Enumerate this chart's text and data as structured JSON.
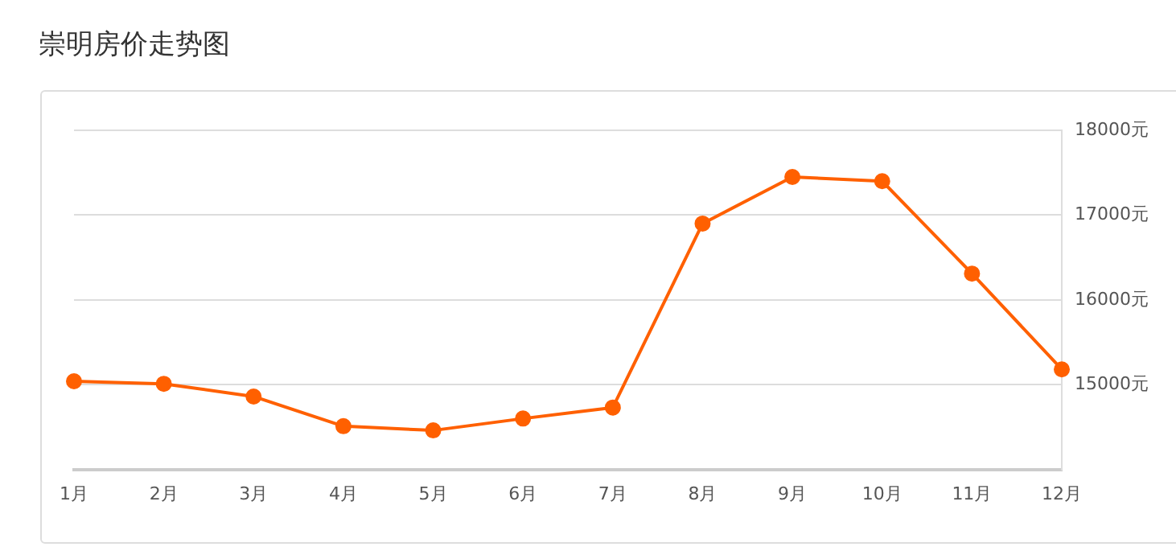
{
  "chart_data": {
    "type": "line",
    "title": "崇明房价走势图",
    "categories": [
      "1月",
      "2月",
      "3月",
      "4月",
      "5月",
      "6月",
      "7月",
      "8月",
      "9月",
      "10月",
      "11月",
      "12月"
    ],
    "series": [
      {
        "color": "#ff6000",
        "values": [
          15040,
          15010,
          14860,
          14510,
          14460,
          14600,
          14730,
          16900,
          17450,
          17400,
          16310,
          15180
        ]
      }
    ],
    "ylim": [
      14000,
      18000
    ],
    "yticks": [
      {
        "value": 15000,
        "label": "15000元"
      },
      {
        "value": 16000,
        "label": "16000元"
      },
      {
        "value": 17000,
        "label": "17000元"
      },
      {
        "value": 18000,
        "label": "18000元"
      }
    ],
    "grid": "y",
    "legend": false,
    "marker": "circle",
    "line_style": "solid"
  }
}
